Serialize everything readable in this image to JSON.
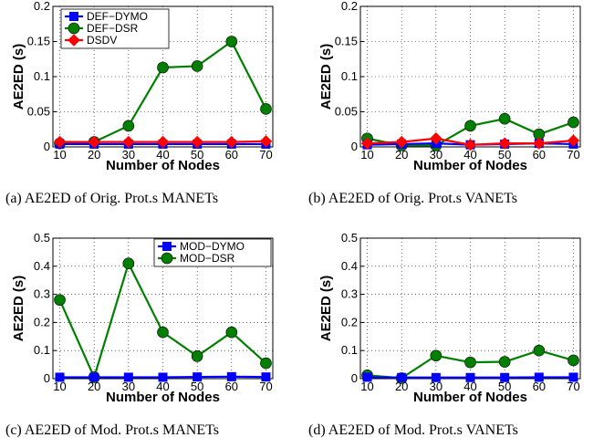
{
  "chart_data": [
    {
      "type": "line",
      "caption": "(a) AE2ED of Orig. Prot.s MANETs",
      "xlabel": "Number of Nodes",
      "ylabel": "AE2ED (s)",
      "x": [
        10,
        20,
        30,
        40,
        50,
        60,
        70
      ],
      "xticks": [
        "10",
        "20",
        "30",
        "40",
        "50",
        "60",
        "70"
      ],
      "ylim": [
        0,
        0.2
      ],
      "yticks": [
        0,
        0.05,
        0.1,
        0.15,
        0.2
      ],
      "ytick_labels": [
        "0",
        "0.05",
        "0.1",
        "0.15",
        "0.2"
      ],
      "legend_position": "top-left",
      "series": [
        {
          "name": "DEF−DYMO",
          "color": "#0000ff",
          "marker": "square",
          "values": [
            0.004,
            0.004,
            0.004,
            0.004,
            0.004,
            0.004,
            0.004
          ]
        },
        {
          "name": "DEF−DSR",
          "color": "#007f00",
          "marker": "circle",
          "values": [
            0.005,
            0.007,
            0.03,
            0.113,
            0.115,
            0.15,
            0.054
          ]
        },
        {
          "name": "DSDV",
          "color": "#ff0000",
          "marker": "diamond",
          "values": [
            0.007,
            0.007,
            0.007,
            0.007,
            0.007,
            0.007,
            0.008
          ]
        }
      ]
    },
    {
      "type": "line",
      "caption": "(b) AE2ED of Orig. Prot.s VANETs",
      "xlabel": "Number of Nodes",
      "ylabel": "AE2ED (s)",
      "x": [
        10,
        20,
        30,
        40,
        50,
        60,
        70
      ],
      "xticks": [
        "10",
        "20",
        "30",
        "40",
        "50",
        "60",
        "70"
      ],
      "ylim": [
        0,
        0.2
      ],
      "yticks": [
        0,
        0.05,
        0.1,
        0.15,
        0.2
      ],
      "ytick_labels": [
        "0",
        "0.05",
        "0.1",
        "0.15",
        "0.2"
      ],
      "series": [
        {
          "color": "#0000ff",
          "marker": "square",
          "values": [
            0.003,
            0.004,
            0.005,
            0.003,
            0.004,
            0.005,
            0.004
          ]
        },
        {
          "color": "#007f00",
          "marker": "circle",
          "values": [
            0.012,
            0.002,
            0.002,
            0.03,
            0.04,
            0.018,
            0.035
          ]
        },
        {
          "color": "#ff0000",
          "marker": "diamond",
          "values": [
            0.005,
            0.007,
            0.012,
            0.003,
            0.005,
            0.005,
            0.009
          ]
        }
      ]
    },
    {
      "type": "line",
      "caption": "(c) AE2ED of Mod. Prot.s MANETs",
      "xlabel": "Number of Nodes",
      "ylabel": "AE2ED (s)",
      "x": [
        10,
        20,
        30,
        40,
        50,
        60,
        70
      ],
      "xticks": [
        "10",
        "20",
        "30",
        "40",
        "50",
        "60",
        "70"
      ],
      "ylim": [
        0,
        0.5
      ],
      "yticks": [
        0,
        0.1,
        0.2,
        0.3,
        0.4,
        0.5
      ],
      "ytick_labels": [
        "0",
        "0.1",
        "0.2",
        "0.3",
        "0.4",
        "0.5"
      ],
      "legend_position": "top-right",
      "series": [
        {
          "name": "MOD−DYMO",
          "color": "#0000ff",
          "marker": "square",
          "values": [
            0.005,
            0.005,
            0.005,
            0.005,
            0.006,
            0.007,
            0.006
          ]
        },
        {
          "name": "MOD−DSR",
          "color": "#007f00",
          "marker": "circle",
          "values": [
            0.28,
            0.005,
            0.41,
            0.165,
            0.08,
            0.165,
            0.055
          ]
        }
      ]
    },
    {
      "type": "line",
      "caption": "(d) AE2ED of Mod. Prot.s VANETs",
      "xlabel": "Number of Nodes",
      "ylabel": "AE2ED (s)",
      "x": [
        10,
        20,
        30,
        40,
        50,
        60,
        70
      ],
      "xticks": [
        "10",
        "20",
        "30",
        "40",
        "50",
        "60",
        "70"
      ],
      "ylim": [
        0,
        0.5
      ],
      "yticks": [
        0,
        0.1,
        0.2,
        0.3,
        0.4,
        0.5
      ],
      "ytick_labels": [
        "0",
        "0.1",
        "0.2",
        "0.3",
        "0.4",
        "0.5"
      ],
      "series": [
        {
          "color": "#0000ff",
          "marker": "square",
          "values": [
            0.005,
            0.004,
            0.004,
            0.004,
            0.004,
            0.005,
            0.005
          ]
        },
        {
          "color": "#007f00",
          "marker": "circle",
          "values": [
            0.012,
            0.002,
            0.082,
            0.058,
            0.06,
            0.1,
            0.065
          ]
        }
      ]
    }
  ]
}
